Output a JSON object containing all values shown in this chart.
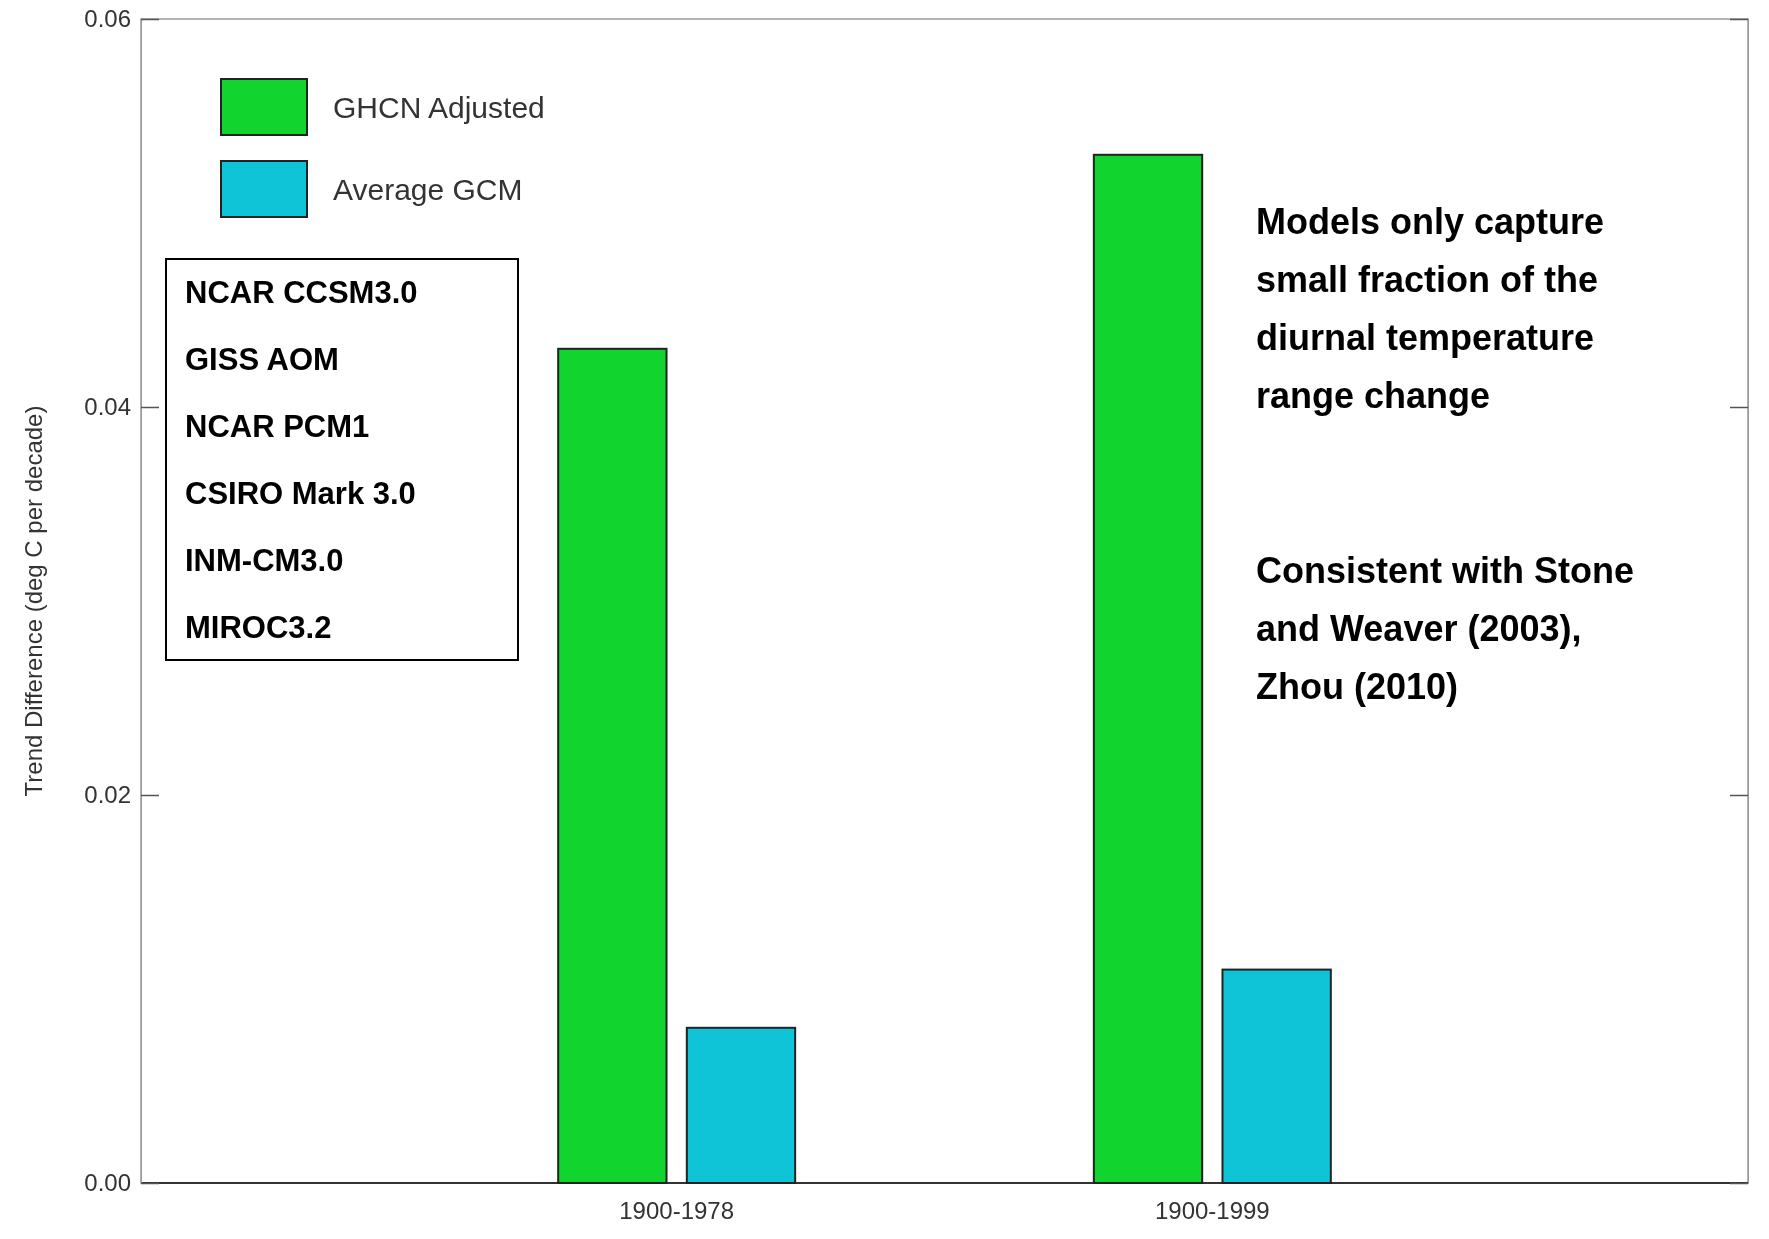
{
  "chart_data": {
    "type": "bar",
    "ylabel": "Trend Difference (deg C per decade)",
    "categories": [
      "1900-1978",
      "1900-1999"
    ],
    "series": [
      {
        "name": "GHCN Adjusted",
        "color": "#12d42e",
        "values": [
          0.043,
          0.053
        ]
      },
      {
        "name": "Average GCM",
        "color": "#10c4d8",
        "values": [
          0.008,
          0.011
        ]
      }
    ],
    "ylim": [
      0,
      0.06
    ],
    "yticks": [
      {
        "value": 0,
        "label": "0.00"
      },
      {
        "value": 0.02,
        "label": "0.02"
      },
      {
        "value": 0.04,
        "label": "0.04"
      },
      {
        "value": 0.06,
        "label": "0.06"
      }
    ],
    "legend": "top left",
    "grid": false,
    "annotations": [
      "NCAR CCSM3.0",
      "GISS AOM",
      "NCAR PCM1",
      "CSIRO Mark 3.0",
      "INM-CM3.0",
      "MIROC3.2",
      "Models only capture small fraction of the diurnal temperature range change",
      "Consistent with Stone and Weaver (2003), Zhou (2010)"
    ]
  }
}
